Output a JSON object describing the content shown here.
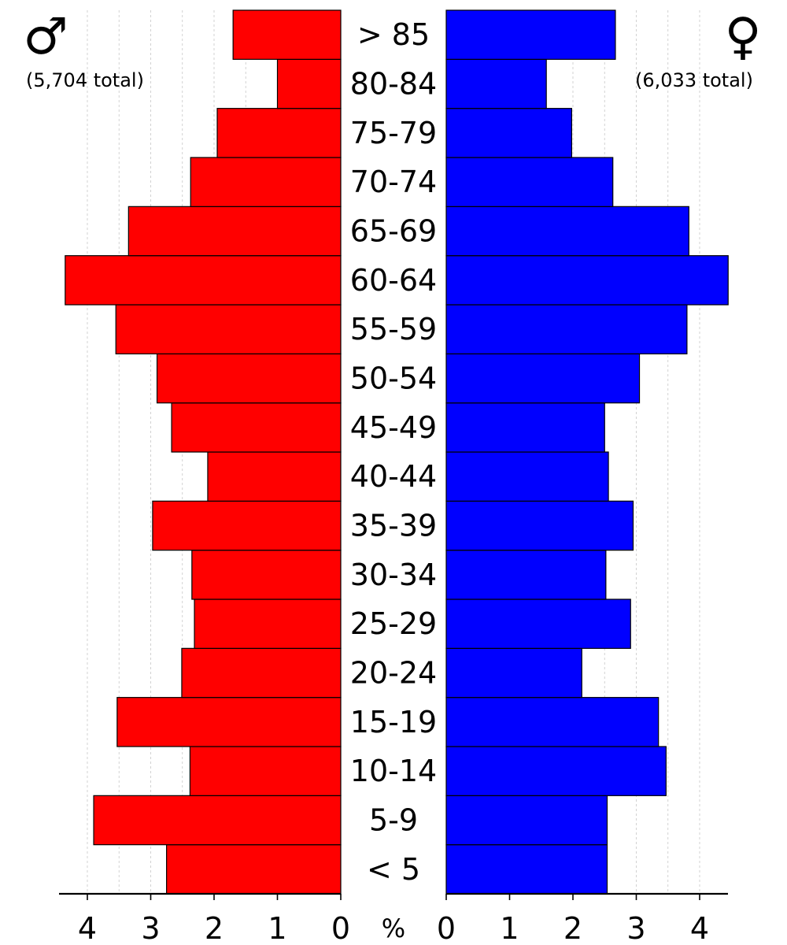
{
  "chart_data": {
    "type": "bar",
    "orientation": "horizontal",
    "layout": "population pyramid",
    "categories": [
      "< 5",
      "5-9",
      "10-14",
      "15-19",
      "20-24",
      "25-29",
      "30-34",
      "35-39",
      "40-44",
      "45-49",
      "50-54",
      "55-59",
      "60-64",
      "65-69",
      "70-74",
      "75-79",
      "80-84",
      "> 85"
    ],
    "series": [
      {
        "name": "male",
        "side": "left",
        "color": "#ff0000",
        "symbol": "♂",
        "total_label": "(5,704 total)",
        "values": [
          2.75,
          3.9,
          2.38,
          3.53,
          2.51,
          2.31,
          2.35,
          2.97,
          2.1,
          2.67,
          2.9,
          3.55,
          4.35,
          3.35,
          2.37,
          1.95,
          1.0,
          1.7
        ]
      },
      {
        "name": "female",
        "side": "right",
        "color": "#0000ff",
        "symbol": "♀",
        "total_label": "(6,033 total)",
        "values": [
          2.54,
          2.54,
          3.47,
          3.35,
          2.14,
          2.91,
          2.52,
          2.95,
          2.56,
          2.5,
          3.05,
          3.8,
          4.45,
          3.83,
          2.63,
          1.98,
          1.58,
          2.67
        ]
      }
    ],
    "xlim": [
      0,
      4.45
    ],
    "left_ticks": [
      "4",
      "3",
      "2",
      "1",
      "0"
    ],
    "right_ticks": [
      "0",
      "1",
      "2",
      "3",
      "4"
    ],
    "unit_label": "%",
    "grid": true
  }
}
